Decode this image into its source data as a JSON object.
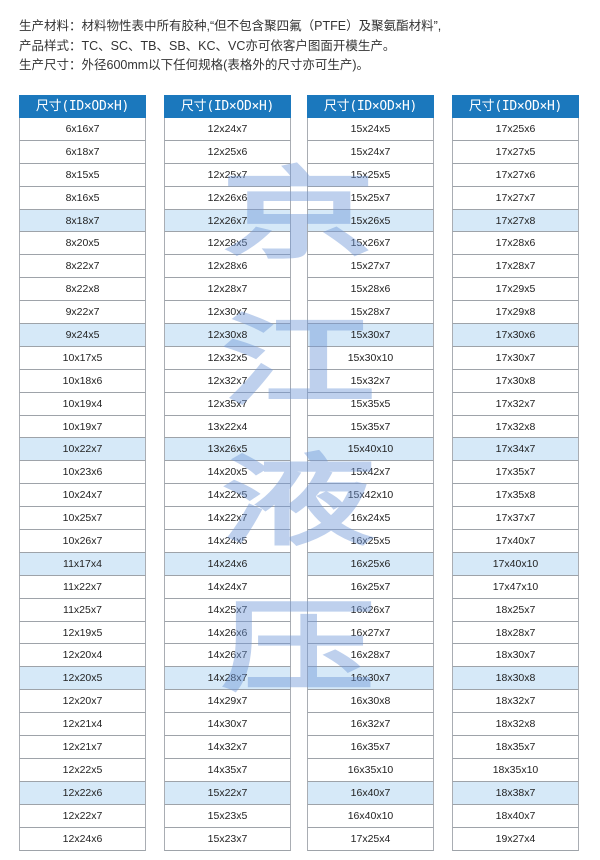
{
  "intro": [
    "生产材料：材料物性表中所有胶种,“但不包含聚四氟（PTFE）及聚氨酯材料”,",
    "产品样式：TC、SC、TB、SB、KC、VC亦可依客户图面开模生产。",
    "生产尺寸：外径600mm以下任何规格(表格外的尺寸亦可生产)。"
  ],
  "colors": {
    "header_bg": "#1b78bd",
    "highlight_row": "#d6e9f8"
  },
  "watermark": [
    "京",
    "江",
    "液",
    "压"
  ],
  "tables": [
    {
      "header": "尺寸(ID×OD×H)",
      "rows": [
        "6x16x7",
        "6x18x7",
        "8x15x5",
        "8x16x5",
        "8x18x7",
        "8x20x5",
        "8x22x7",
        "8x22x8",
        "9x22x7",
        "9x24x5",
        "10x17x5",
        "10x18x6",
        "10x19x4",
        "10x19x7",
        "10x22x7",
        "10x23x6",
        "10x24x7",
        "10x25x7",
        "10x26x7",
        "11x17x4",
        "11x22x7",
        "11x25x7",
        "12x19x5",
        "12x20x4",
        "12x20x5",
        "12x20x7",
        "12x21x4",
        "12x21x7",
        "12x22x5",
        "12x22x6",
        "12x22x7",
        "12x24x6"
      ]
    },
    {
      "header": "尺寸(ID×OD×H)",
      "rows": [
        "12x24x7",
        "12x25x6",
        "12x25x7",
        "12x26x6",
        "12x26x7",
        "12x28x5",
        "12x28x6",
        "12x28x7",
        "12x30x7",
        "12x30x8",
        "12x32x5",
        "12x32x7",
        "12x35x7",
        "13x22x4",
        "13x26x5",
        "14x20x5",
        "14x22x5",
        "14x22x7",
        "14x24x5",
        "14x24x6",
        "14x24x7",
        "14x25x7",
        "14x26x6",
        "14x26x7",
        "14x28x7",
        "14x29x7",
        "14x30x7",
        "14x32x7",
        "14x35x7",
        "15x22x7",
        "15x23x5",
        "15x23x7"
      ]
    },
    {
      "header": "尺寸(ID×OD×H)",
      "rows": [
        "15x24x5",
        "15x24x7",
        "15x25x5",
        "15x25x7",
        "15x26x5",
        "15x26x7",
        "15x27x7",
        "15x28x6",
        "15x28x7",
        "15x30x7",
        "15x30x10",
        "15x32x7",
        "15x35x5",
        "15x35x7",
        "15x40x10",
        "15x42x7",
        "15x42x10",
        "16x24x5",
        "16x25x5",
        "16x25x6",
        "16x25x7",
        "16x26x7",
        "16x27x7",
        "16x28x7",
        "16x30x7",
        "16x30x8",
        "16x32x7",
        "16x35x7",
        "16x35x10",
        "16x40x7",
        "16x40x10",
        "17x25x4"
      ]
    },
    {
      "header": "尺寸(ID×OD×H)",
      "rows": [
        "17x25x6",
        "17x27x5",
        "17x27x6",
        "17x27x7",
        "17x27x8",
        "17x28x6",
        "17x28x7",
        "17x29x5",
        "17x29x8",
        "17x30x6",
        "17x30x7",
        "17x30x8",
        "17x32x7",
        "17x32x8",
        "17x34x7",
        "17x35x7",
        "17x35x8",
        "17x37x7",
        "17x40x7",
        "17x40x10",
        "17x47x10",
        "18x25x7",
        "18x28x7",
        "18x30x7",
        "18x30x8",
        "18x32x7",
        "18x32x8",
        "18x35x7",
        "18x35x10",
        "18x38x7",
        "18x40x7",
        "19x27x4"
      ]
    }
  ]
}
